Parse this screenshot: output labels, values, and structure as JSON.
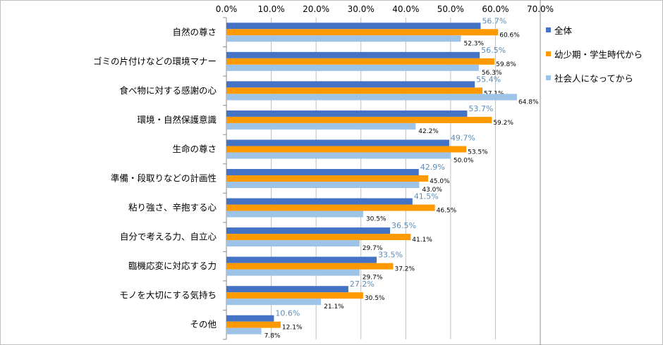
{
  "chart_data": {
    "type": "bar",
    "orientation": "horizontal",
    "categories": [
      "自然の尊さ",
      "ゴミの片付けなどの環境マナー",
      "食べ物に対する感謝の心",
      "環境・自然保護意識",
      "生命の尊さ",
      "準備・段取りなどの計画性",
      "粘り強さ、辛抱する心",
      "自分で考える力、自立心",
      "臨機応変に対応する力",
      "モノを大切にする気持ち",
      "その他"
    ],
    "series": [
      {
        "name": "全体",
        "color": "#4472c4",
        "values": [
          56.7,
          56.5,
          55.4,
          53.7,
          49.7,
          42.9,
          41.5,
          36.5,
          33.5,
          27.2,
          10.6
        ]
      },
      {
        "name": "幼少期・学生時代から",
        "color": "#ff9900",
        "values": [
          60.6,
          59.8,
          57.1,
          59.2,
          53.5,
          45.0,
          46.5,
          41.1,
          37.2,
          30.5,
          12.1
        ]
      },
      {
        "name": "社会人になってから",
        "color": "#9dc3e6",
        "values": [
          52.3,
          56.3,
          64.8,
          42.2,
          50.0,
          43.0,
          30.5,
          29.7,
          29.7,
          21.1,
          7.8
        ]
      }
    ],
    "xlim": [
      0,
      70
    ],
    "xticks": [
      "0.0%",
      "10.0%",
      "20.0%",
      "30.0%",
      "40.0%",
      "50.0%",
      "60.0%",
      "70.0%"
    ],
    "axis_position": "top",
    "grid": true,
    "legend": "right",
    "label_format": "0.0%"
  }
}
